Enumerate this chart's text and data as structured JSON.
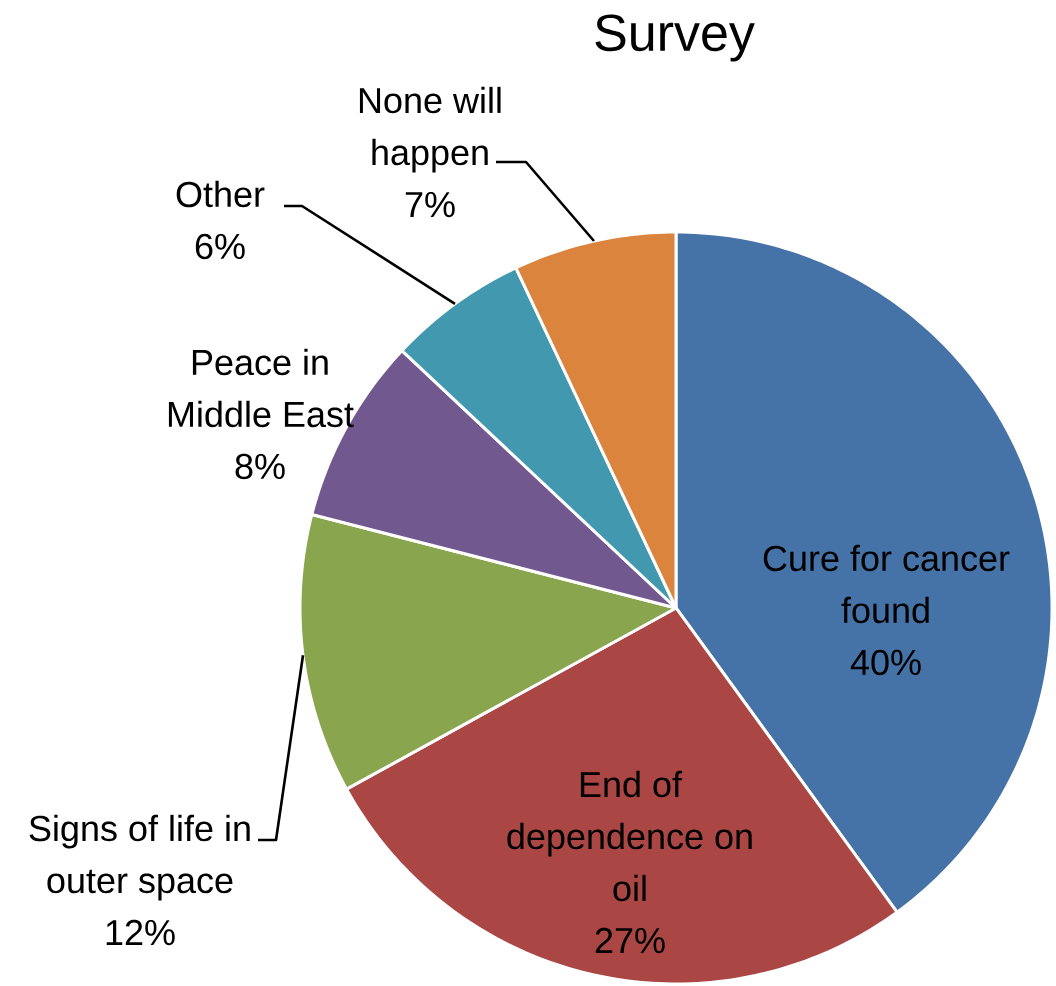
{
  "chart_data": {
    "type": "pie",
    "title": "Survey",
    "categories": [
      "Cure for cancer found",
      "End of dependence on oil",
      "Signs of life in outer space",
      "Peace in Middle East",
      "Other",
      "None will happen"
    ],
    "values": [
      40,
      27,
      12,
      8,
      6,
      7
    ],
    "value_labels": [
      "40%",
      "27%",
      "12%",
      "8%",
      "6%",
      "7%"
    ],
    "colors": [
      "#4572a7",
      "#aa4643",
      "#89a54e",
      "#71588f",
      "#4198af",
      "#db843d"
    ]
  }
}
